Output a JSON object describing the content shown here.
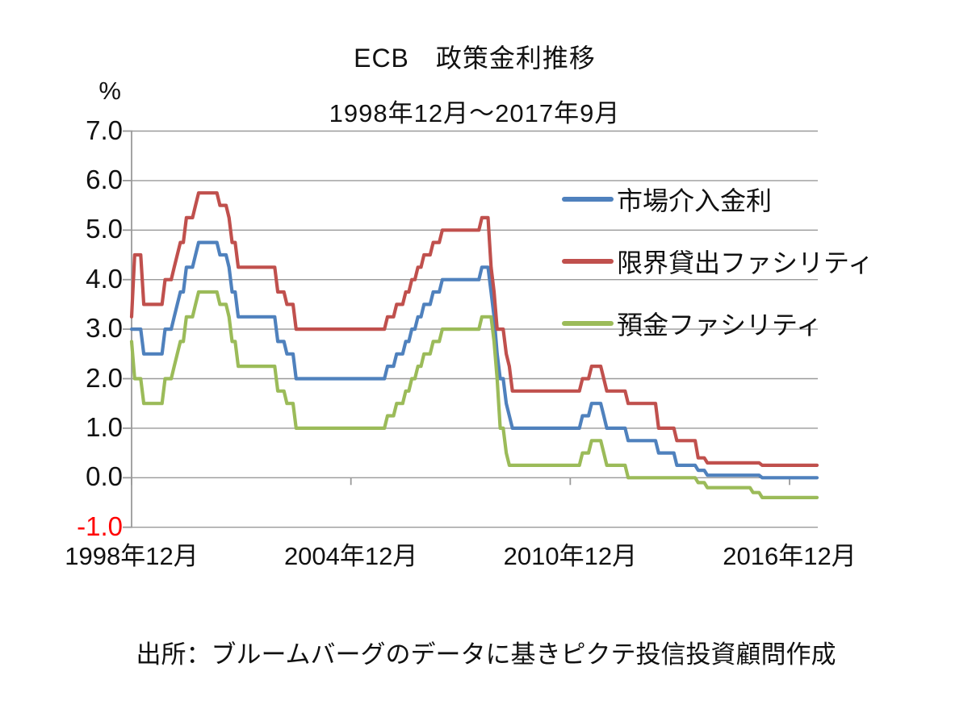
{
  "page": {
    "background": "#FFFFFF"
  },
  "chart_data": {
    "type": "line",
    "title": "ECB　政策金利推移",
    "subtitle": "1998年12月～2017年9月",
    "source": "出所：ブルームバーグのデータに基きピクテ投信投資顧問作成",
    "y_axis": {
      "unit_label": "%",
      "range": [
        -1.0,
        7.0
      ],
      "tick_values": [
        7.0,
        6.0,
        5.0,
        4.0,
        3.0,
        2.0,
        1.0,
        0.0,
        -1.0
      ],
      "tick_labels": [
        "7.0",
        "6.0",
        "5.0",
        "4.0",
        "3.0",
        "2.0",
        "1.0",
        "0.0",
        "-1.0"
      ],
      "negative_tick_color": "#FF0000"
    },
    "x_axis": {
      "start": "1998-12",
      "end": "2017-09",
      "tick_labels": [
        "1998年12月",
        "2004年12月",
        "2010年12月",
        "2016年12月"
      ],
      "tick_months": [
        0,
        72,
        144,
        216
      ]
    },
    "grid": "horizontal",
    "legend_position": "inside-right",
    "series": [
      {
        "name": "市場介入金利",
        "color": "#4F81BD",
        "changes": [
          [
            "1998-12",
            3.0
          ],
          [
            "1999-04",
            2.5
          ],
          [
            "1999-11",
            3.0
          ],
          [
            "2000-02",
            3.25
          ],
          [
            "2000-03",
            3.5
          ],
          [
            "2000-04",
            3.75
          ],
          [
            "2000-06",
            4.25
          ],
          [
            "2000-09",
            4.5
          ],
          [
            "2000-10",
            4.75
          ],
          [
            "2001-05",
            4.5
          ],
          [
            "2001-08",
            4.25
          ],
          [
            "2001-09",
            3.75
          ],
          [
            "2001-11",
            3.25
          ],
          [
            "2002-12",
            2.75
          ],
          [
            "2003-03",
            2.5
          ],
          [
            "2003-06",
            2.0
          ],
          [
            "2005-12",
            2.25
          ],
          [
            "2006-03",
            2.5
          ],
          [
            "2006-06",
            2.75
          ],
          [
            "2006-08",
            3.0
          ],
          [
            "2006-10",
            3.25
          ],
          [
            "2006-12",
            3.5
          ],
          [
            "2007-03",
            3.75
          ],
          [
            "2007-06",
            4.0
          ],
          [
            "2008-07",
            4.25
          ],
          [
            "2008-10",
            3.75
          ],
          [
            "2008-11",
            3.25
          ],
          [
            "2008-12",
            2.5
          ],
          [
            "2009-01",
            2.0
          ],
          [
            "2009-03",
            1.5
          ],
          [
            "2009-04",
            1.25
          ],
          [
            "2009-05",
            1.0
          ],
          [
            "2011-04",
            1.25
          ],
          [
            "2011-07",
            1.5
          ],
          [
            "2011-11",
            1.25
          ],
          [
            "2011-12",
            1.0
          ],
          [
            "2012-07",
            0.75
          ],
          [
            "2013-05",
            0.5
          ],
          [
            "2013-11",
            0.25
          ],
          [
            "2014-06",
            0.15
          ],
          [
            "2014-09",
            0.05
          ],
          [
            "2016-03",
            0.0
          ]
        ]
      },
      {
        "name": "限界貸出ファシリティ",
        "color": "#C0504D",
        "changes": [
          [
            "1998-12",
            3.25
          ],
          [
            "1999-01",
            4.5
          ],
          [
            "1999-04",
            3.5
          ],
          [
            "1999-11",
            4.0
          ],
          [
            "2000-02",
            4.25
          ],
          [
            "2000-03",
            4.5
          ],
          [
            "2000-04",
            4.75
          ],
          [
            "2000-06",
            5.25
          ],
          [
            "2000-09",
            5.5
          ],
          [
            "2000-10",
            5.75
          ],
          [
            "2001-05",
            5.5
          ],
          [
            "2001-08",
            5.25
          ],
          [
            "2001-09",
            4.75
          ],
          [
            "2001-11",
            4.25
          ],
          [
            "2002-12",
            3.75
          ],
          [
            "2003-03",
            3.5
          ],
          [
            "2003-06",
            3.0
          ],
          [
            "2005-12",
            3.25
          ],
          [
            "2006-03",
            3.5
          ],
          [
            "2006-06",
            3.75
          ],
          [
            "2006-08",
            4.0
          ],
          [
            "2006-10",
            4.25
          ],
          [
            "2006-12",
            4.5
          ],
          [
            "2007-03",
            4.75
          ],
          [
            "2007-06",
            5.0
          ],
          [
            "2008-07",
            5.25
          ],
          [
            "2008-10",
            4.25
          ],
          [
            "2008-11",
            3.75
          ],
          [
            "2008-12",
            3.0
          ],
          [
            "2009-03",
            2.5
          ],
          [
            "2009-04",
            2.25
          ],
          [
            "2009-05",
            1.75
          ],
          [
            "2011-04",
            2.0
          ],
          [
            "2011-07",
            2.25
          ],
          [
            "2011-11",
            2.0
          ],
          [
            "2011-12",
            1.75
          ],
          [
            "2012-07",
            1.5
          ],
          [
            "2013-05",
            1.0
          ],
          [
            "2013-11",
            0.75
          ],
          [
            "2014-06",
            0.4
          ],
          [
            "2014-09",
            0.3
          ],
          [
            "2016-03",
            0.25
          ]
        ]
      },
      {
        "name": "預金ファシリティ",
        "color": "#9BBB59",
        "changes": [
          [
            "1998-12",
            2.75
          ],
          [
            "1999-01",
            2.0
          ],
          [
            "1999-04",
            1.5
          ],
          [
            "1999-11",
            2.0
          ],
          [
            "2000-02",
            2.25
          ],
          [
            "2000-03",
            2.5
          ],
          [
            "2000-04",
            2.75
          ],
          [
            "2000-06",
            3.25
          ],
          [
            "2000-09",
            3.5
          ],
          [
            "2000-10",
            3.75
          ],
          [
            "2001-05",
            3.5
          ],
          [
            "2001-08",
            3.25
          ],
          [
            "2001-09",
            2.75
          ],
          [
            "2001-11",
            2.25
          ],
          [
            "2002-12",
            1.75
          ],
          [
            "2003-03",
            1.5
          ],
          [
            "2003-06",
            1.0
          ],
          [
            "2005-12",
            1.25
          ],
          [
            "2006-03",
            1.5
          ],
          [
            "2006-06",
            1.75
          ],
          [
            "2006-08",
            2.0
          ],
          [
            "2006-10",
            2.25
          ],
          [
            "2006-12",
            2.5
          ],
          [
            "2007-03",
            2.75
          ],
          [
            "2007-06",
            3.0
          ],
          [
            "2008-07",
            3.25
          ],
          [
            "2008-11",
            2.75
          ],
          [
            "2008-12",
            2.0
          ],
          [
            "2009-01",
            1.0
          ],
          [
            "2009-03",
            0.5
          ],
          [
            "2009-04",
            0.25
          ],
          [
            "2011-04",
            0.5
          ],
          [
            "2011-07",
            0.75
          ],
          [
            "2011-11",
            0.5
          ],
          [
            "2011-12",
            0.25
          ],
          [
            "2012-07",
            0.0
          ],
          [
            "2014-06",
            -0.1
          ],
          [
            "2014-09",
            -0.2
          ],
          [
            "2015-12",
            -0.3
          ],
          [
            "2016-03",
            -0.4
          ]
        ]
      }
    ]
  }
}
